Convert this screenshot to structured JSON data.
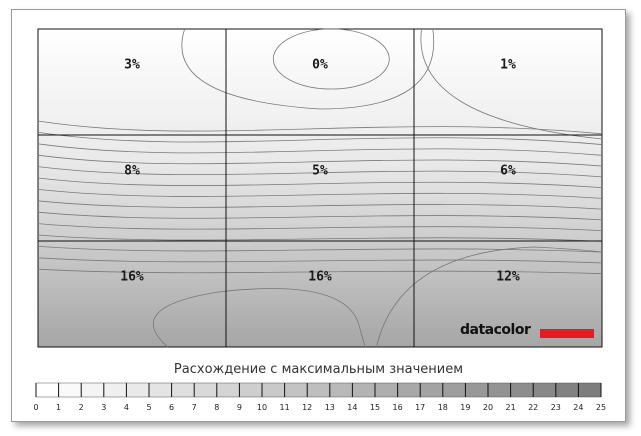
{
  "chart_data": {
    "type": "heatmap",
    "title": "",
    "legend_title": "Расхождение с максимальным значением",
    "rows": 3,
    "cols": 3,
    "cells": [
      [
        "3%",
        "0%",
        "1%"
      ],
      [
        "8%",
        "5%",
        "6%"
      ],
      [
        "16%",
        "16%",
        "12%"
      ]
    ],
    "values": [
      [
        3,
        0,
        1
      ],
      [
        8,
        5,
        6
      ],
      [
        16,
        16,
        12
      ]
    ],
    "scale_min": 0,
    "scale_max": 25,
    "scale_ticks": [
      "0",
      "1",
      "2",
      "3",
      "4",
      "5",
      "6",
      "7",
      "8",
      "9",
      "10",
      "11",
      "12",
      "13",
      "14",
      "15",
      "16",
      "17",
      "18",
      "19",
      "20",
      "21",
      "22",
      "23",
      "24",
      "25"
    ],
    "grid": true,
    "contours": true,
    "brand": "datacolor",
    "colors": {
      "brand_bar": "#e31b23",
      "low": "#ffffff",
      "high": "#7a7a7a"
    }
  }
}
